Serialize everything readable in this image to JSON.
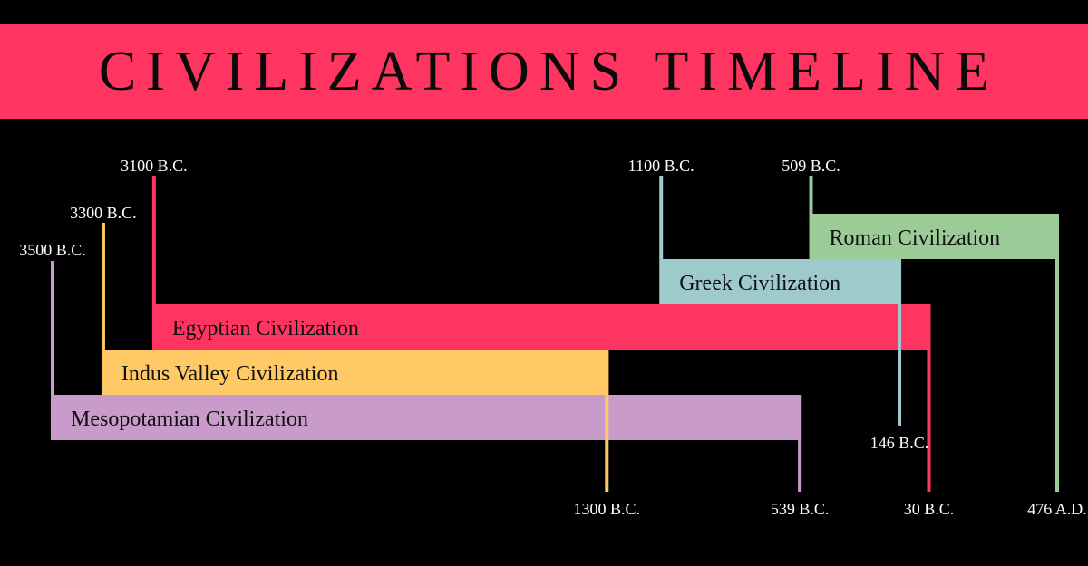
{
  "title": "CIVILIZATIONS TIMELINE",
  "civilizations": [
    {
      "id": "mesopotamian",
      "name": "Mesopotamian Civilization",
      "start": "3500 B.C.",
      "end": "539 B.C.",
      "start_year": -3500,
      "end_year": -539,
      "color": "#c99bcb"
    },
    {
      "id": "indus",
      "name": "Indus Valley Civilization",
      "start": "3300 B.C.",
      "end": "1300 B.C.",
      "start_year": -3300,
      "end_year": -1300,
      "color": "#ffc966"
    },
    {
      "id": "egyptian",
      "name": "Egyptian Civilization",
      "start": "3100 B.C.",
      "end": "30 B.C.",
      "start_year": -3100,
      "end_year": -30,
      "color": "#ff3561"
    },
    {
      "id": "greek",
      "name": "Greek Civilization",
      "start": "1100 B.C.",
      "end": "146 B.C.",
      "start_year": -1100,
      "end_year": -146,
      "color": "#9fcacb"
    },
    {
      "id": "roman",
      "name": "Roman Civilization",
      "start": "509 B.C.",
      "end": "476 A.D.",
      "start_year": -509,
      "end_year": 476,
      "color": "#9bcb96"
    }
  ]
}
